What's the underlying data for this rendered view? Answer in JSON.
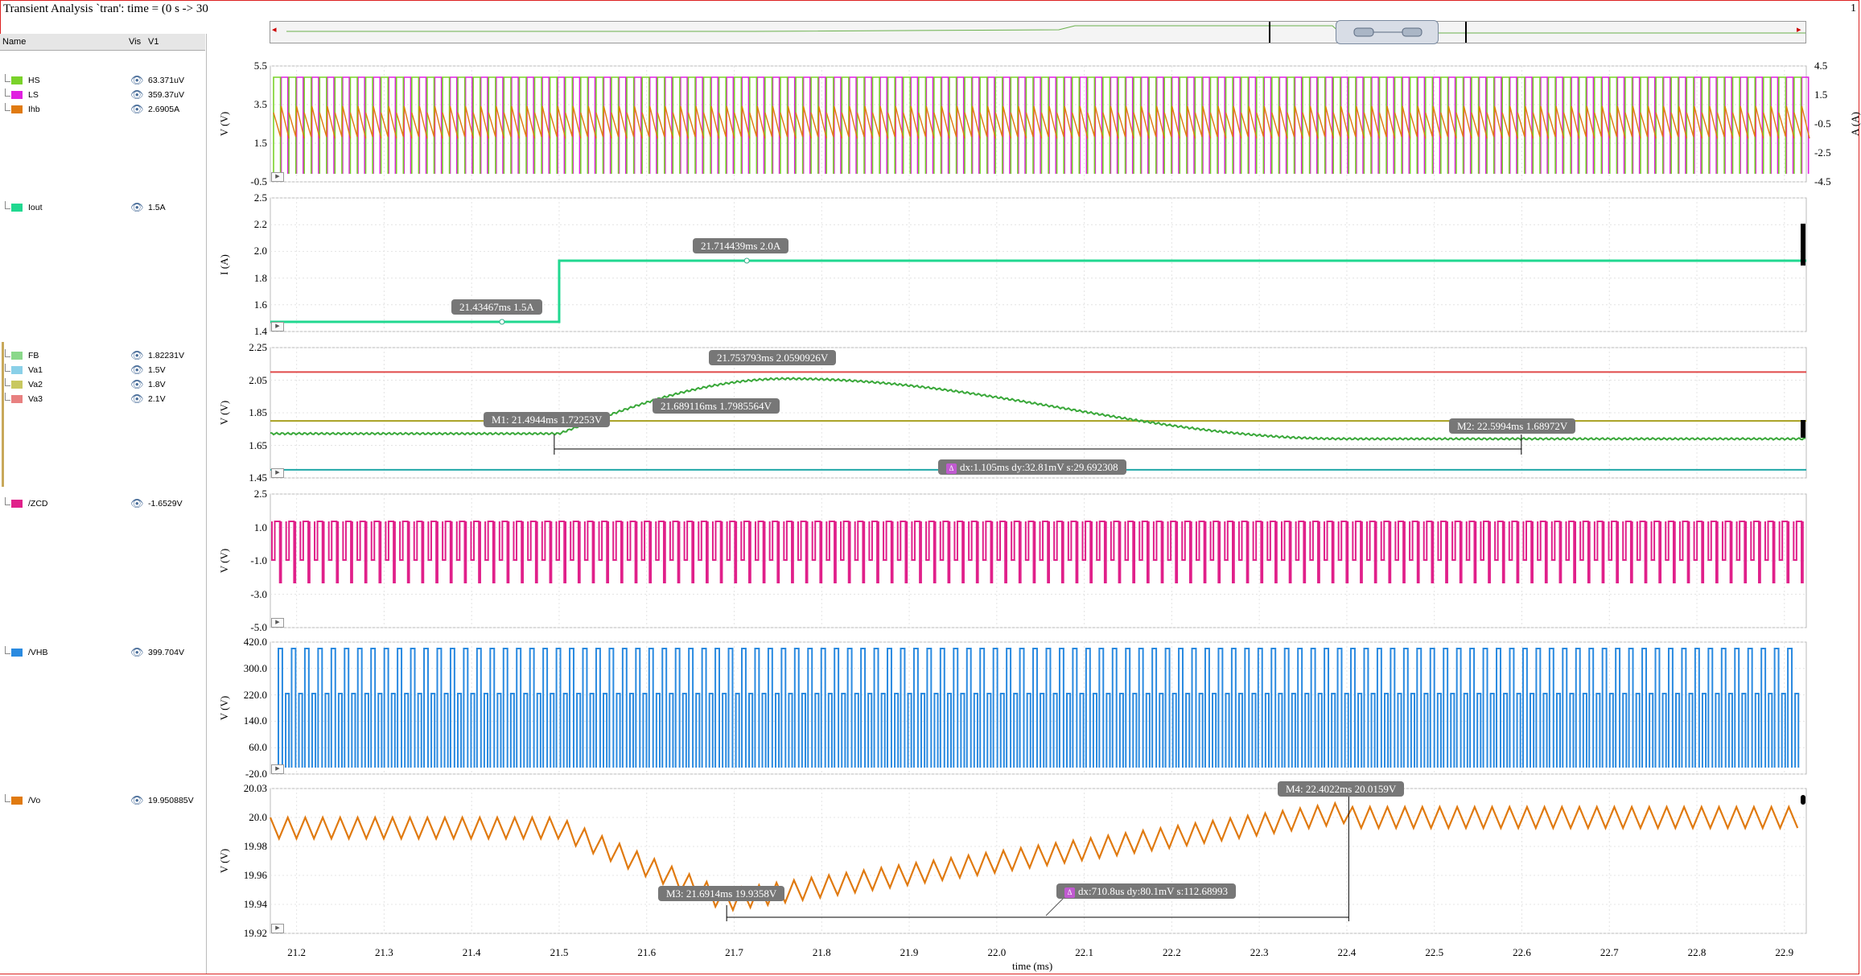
{
  "window": {
    "title": "Transient Analysis `tran': time = (0 s -> 30",
    "page_number": "1"
  },
  "legend": {
    "headers": {
      "name": "Name",
      "vis": "Vis",
      "v1": "V1"
    },
    "groups": [
      {
        "items": [
          {
            "name": "HS",
            "value": "63.371uV",
            "color": "#7ad22a"
          },
          {
            "name": "LS",
            "value": "359.37uV",
            "color": "#e020e0"
          },
          {
            "name": "Ihb",
            "value": "2.6905A",
            "color": "#e07a10"
          }
        ]
      },
      {
        "items": [
          {
            "name": "Iout",
            "value": "1.5A",
            "color": "#20d890"
          }
        ]
      },
      {
        "items": [
          {
            "name": "FB",
            "value": "1.82231V",
            "color": "#8ad88a"
          },
          {
            "name": "Va1",
            "value": "1.5V",
            "color": "#8ad0e8"
          },
          {
            "name": "Va2",
            "value": "1.8V",
            "color": "#c8c860"
          },
          {
            "name": "Va3",
            "value": "2.1V",
            "color": "#e88080"
          }
        ]
      },
      {
        "items": [
          {
            "name": "/ZCD",
            "value": "-1.6529V",
            "color": "#e0208a"
          }
        ]
      },
      {
        "items": [
          {
            "name": "/VHB",
            "value": "399.704V",
            "color": "#2a8ae0"
          }
        ]
      },
      {
        "items": [
          {
            "name": "/Vo",
            "value": "19.950885V",
            "color": "#e07a10"
          }
        ]
      }
    ]
  },
  "x_axis": {
    "label": "time (ms)",
    "ticks": [
      "21.2",
      "21.3",
      "21.4",
      "21.5",
      "21.6",
      "21.7",
      "21.8",
      "21.9",
      "22.0",
      "22.1",
      "22.2",
      "22.3",
      "22.4",
      "22.5",
      "22.6",
      "22.7",
      "22.8",
      "22.9"
    ]
  },
  "panels": [
    {
      "unit_left": "V (V)",
      "unit_right": "A (A)",
      "ticks": [
        "5.5",
        "3.5",
        "1.5",
        "-0.5"
      ],
      "ticks_right": [
        "4.5",
        "1.5",
        "-0.5",
        "-2.5",
        "-4.5"
      ]
    },
    {
      "unit_left": "I (A)",
      "ticks": [
        "2.5",
        "2.2",
        "2.0",
        "1.8",
        "1.6",
        "1.4"
      ]
    },
    {
      "unit_left": "V (V)",
      "ticks": [
        "2.25",
        "2.05",
        "1.85",
        "1.65",
        "1.45"
      ]
    },
    {
      "unit_left": "V (V)",
      "ticks": [
        "2.5",
        "1.0",
        "-1.0",
        "-3.0",
        "-5.0"
      ]
    },
    {
      "unit_left": "V (V)",
      "ticks": [
        "420.0",
        "300.0",
        "220.0",
        "140.0",
        "60.0",
        "-20.0"
      ]
    },
    {
      "unit_left": "V (V)",
      "ticks": [
        "20.03",
        "20.0",
        "19.98",
        "19.96",
        "19.94",
        "19.92"
      ]
    }
  ],
  "markers": {
    "iout_low": "21.43467ms 1.5A",
    "iout_high": "21.714439ms 2.0A",
    "fb_peak": "21.753793ms 2.0590926V",
    "fb_m1": "M1: 21.4944ms 1.72253V",
    "fb_mid": "21.689116ms 1.7985564V",
    "fb_m2": "M2: 22.5994ms 1.68972V",
    "fb_delta": "dx:1.105ms dy:32.81mV s:29.692308",
    "vo_m3": "M3: 21.6914ms 19.9358V",
    "vo_m4": "M4: 22.4022ms 20.0159V",
    "vo_delta": "dx:710.8us dy:80.1mV s:112.68993",
    "delta_icon": "delta-icon"
  },
  "colors": {
    "hs": "#7ad22a",
    "ls": "#e020e0",
    "ihb": "#e07a10",
    "iout": "#20d890",
    "fb": "#3aa83a",
    "va1": "#20a8a8",
    "va2": "#a8a020",
    "va3": "#e04a4a",
    "zcd": "#e0208a",
    "vhb": "#2a8ae0",
    "vo": "#e07a10"
  }
}
